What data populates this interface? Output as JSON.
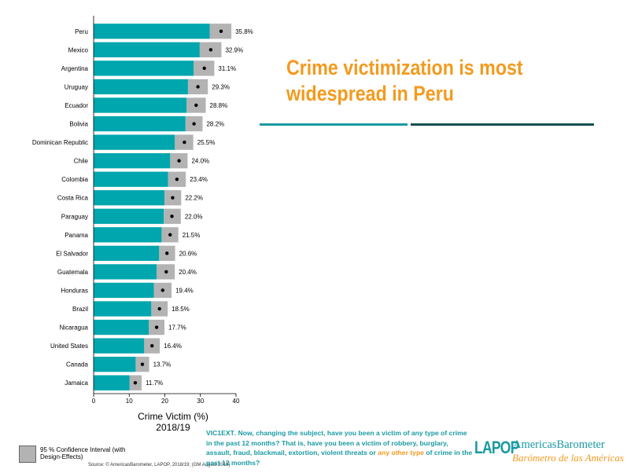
{
  "headline": {
    "part1": "Crime victimization",
    "part2": " is most widespread in Peru"
  },
  "chart_data": {
    "type": "bar",
    "orientation": "horizontal",
    "categories": [
      "Peru",
      "Mexico",
      "Argentina",
      "Uruguay",
      "Ecuador",
      "Bolivia",
      "Dominican Republic",
      "Chile",
      "Colombia",
      "Costa Rica",
      "Paraguay",
      "Panama",
      "El Salvador",
      "Guatemala",
      "Honduras",
      "Brazil",
      "Nicaragua",
      "United States",
      "Canada",
      "Jamaica"
    ],
    "values": [
      35.8,
      32.9,
      31.1,
      29.3,
      28.8,
      28.2,
      25.5,
      24.0,
      23.4,
      22.2,
      22.0,
      21.5,
      20.6,
      20.4,
      19.4,
      18.5,
      17.7,
      16.4,
      13.7,
      11.7
    ],
    "value_labels": [
      "35.8%",
      "32.9%",
      "31.1%",
      "29.3%",
      "28.8%",
      "28.2%",
      "25.5%",
      "24.0%",
      "23.4%",
      "22.2%",
      "22.0%",
      "21.5%",
      "20.6%",
      "20.4%",
      "19.4%",
      "18.5%",
      "17.7%",
      "16.4%",
      "13.7%",
      "11.7%"
    ],
    "ci_low": [
      32.6,
      29.8,
      28.1,
      26.5,
      26.1,
      25.8,
      22.8,
      21.5,
      20.9,
      19.9,
      19.7,
      19.1,
      18.4,
      17.7,
      16.9,
      16.2,
      15.5,
      14.2,
      11.8,
      10.1
    ],
    "ci_high": [
      38.7,
      35.9,
      33.9,
      32.1,
      31.5,
      30.6,
      28.0,
      26.4,
      25.9,
      24.6,
      24.5,
      23.8,
      22.9,
      22.8,
      21.9,
      20.8,
      19.9,
      18.6,
      15.6,
      13.5
    ],
    "xlabel": "Crime Victim (%)",
    "xlabel_year": "2018/19",
    "xlim": [
      0,
      40
    ],
    "xticks": [
      "0",
      "10",
      "20",
      "30",
      "40"
    ],
    "grid": false,
    "bar_color": "#00a6ad",
    "ci_color": "#b3b3b3"
  },
  "legend": {
    "ci_label": "95 % Confidence Interval (with Design-Effects)"
  },
  "source": "Source: © AmericasBarometer, LAPOP, 2018/19; (GM August 2019)",
  "question": {
    "code": "VIC1EXT",
    "text1": ". Now, changing the subject, have you been a victim of any type of crime in the past 12 months? That is, have you been a victim of robbery, burglary, assault, fraud, blackmail, extortion, violent threats or ",
    "emph": "any other type",
    "text2": " of crime in the past 12 months?"
  },
  "branding": {
    "logo": "LAPOP",
    "name": "AmericasBarometer",
    "subtitle": "Barómetro de las Américas",
    "accent": "#1a9aa2",
    "orange": "#f39a1e"
  }
}
